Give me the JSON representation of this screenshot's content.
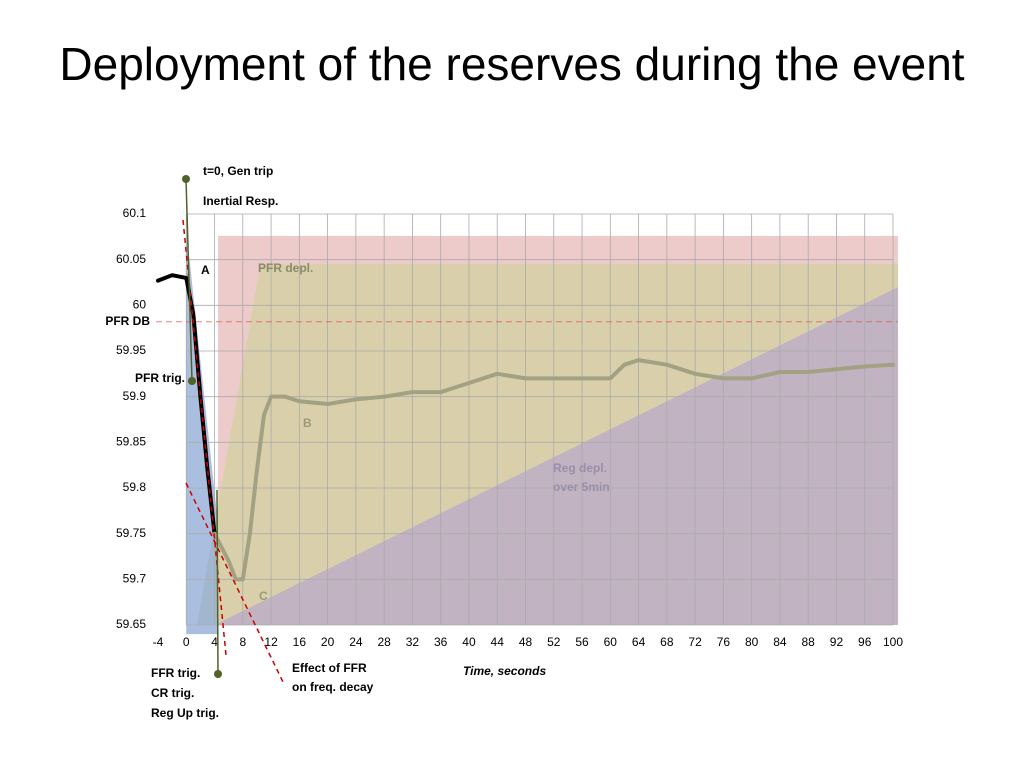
{
  "chart_data": {
    "type": "line",
    "title": "Deployment of the reserves during the event",
    "xlabel": "Time, seconds",
    "xlim": [
      -4,
      100
    ],
    "ylim": [
      59.65,
      60.1
    ],
    "xticks": [
      -4,
      0,
      4,
      8,
      12,
      16,
      20,
      24,
      28,
      32,
      36,
      40,
      44,
      48,
      52,
      56,
      60,
      64,
      68,
      72,
      76,
      80,
      84,
      88,
      92,
      96,
      100
    ],
    "yticks": [
      60.1,
      60.05,
      60,
      59.95,
      59.9,
      59.85,
      59.8,
      59.75,
      59.7,
      59.65
    ],
    "grid": true,
    "areas": [
      {
        "color": "#e6b9b8",
        "x": [
          4.5,
          100.7,
          100.7,
          4.5
        ],
        "y": [
          60.076,
          60.076,
          59.65,
          59.65
        ]
      },
      {
        "color": "#d3d1a0",
        "x": [
          1.5,
          10.5,
          100.7,
          100.7
        ],
        "y": [
          59.65,
          60.045,
          60.045,
          59.65
        ]
      },
      {
        "color": "#b8a9c9",
        "x": [
          4,
          100.7,
          100.7
        ],
        "y": [
          59.65,
          60.02,
          59.65
        ]
      },
      {
        "color": "#8eaad6",
        "x": [
          0,
          4.5,
          4.5,
          0
        ],
        "y": [
          60.083,
          59.76,
          59.64,
          59.64
        ]
      }
    ],
    "series": [
      {
        "color": "#000000",
        "x": [
          -4,
          -2,
          0,
          1,
          2,
          3,
          4
        ],
        "y": [
          60.027,
          60.033,
          60.03,
          59.99,
          59.9,
          59.82,
          59.75
        ]
      },
      {
        "color": "#a3a183",
        "x": [
          4,
          6,
          7,
          8,
          9,
          10,
          11,
          12,
          14,
          16,
          20,
          24,
          28,
          32,
          36,
          40,
          44,
          48,
          56,
          60,
          62,
          64,
          68,
          72,
          76,
          80,
          84,
          88,
          96,
          100
        ],
        "y": [
          59.75,
          59.72,
          59.7,
          59.7,
          59.75,
          59.82,
          59.88,
          59.9,
          59.9,
          59.895,
          59.892,
          59.897,
          59.9,
          59.905,
          59.905,
          59.915,
          59.925,
          59.92,
          59.92,
          59.92,
          59.935,
          59.94,
          59.935,
          59.925,
          59.92,
          59.92,
          59.927,
          59.927,
          59.933,
          59.935
        ]
      }
    ],
    "reference_lines": [
      {
        "label": "PFR DB",
        "y": 59.982,
        "color": "#d9534f"
      }
    ],
    "annotations": [
      "t=0, Gen trip",
      "Inertial Resp.",
      "A",
      "PFR depl.",
      "PFR trig.",
      "B",
      "Reg depl.",
      "over  5min",
      "C",
      "FFR trig.",
      "CR trig.",
      "Reg Up trig.",
      "Effect of FFR",
      "on freq. decay"
    ]
  }
}
